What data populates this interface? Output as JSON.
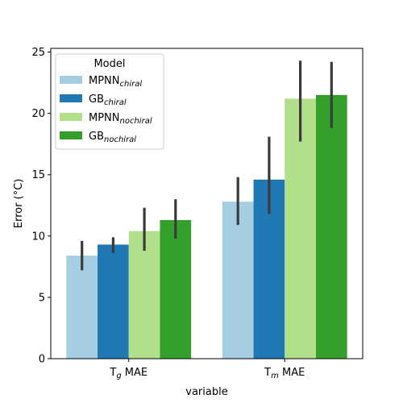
{
  "chart_data": {
    "type": "bar",
    "xlabel": "variable",
    "ylabel": "Error (°C)",
    "ylim": [
      0,
      25.3
    ],
    "yticks": [
      0,
      5,
      10,
      15,
      20,
      25
    ],
    "grid": false,
    "legend_placement": "top-left",
    "legend_title": "Model",
    "categories": [
      {
        "main": "T",
        "sub": "g",
        "rest": " MAE"
      },
      {
        "main": "T",
        "sub": "m",
        "rest": " MAE"
      }
    ],
    "series": [
      {
        "name": {
          "main": "MPNN",
          "sub": "chiral"
        },
        "color": "#a6cee3",
        "values": [
          8.4,
          12.8
        ],
        "error_low": [
          7.2,
          10.9
        ],
        "error_high": [
          9.6,
          14.8
        ]
      },
      {
        "name": {
          "main": "GB",
          "sub": "chiral"
        },
        "color": "#1f78b4",
        "values": [
          9.3,
          14.6
        ],
        "error_low": [
          8.6,
          11.8
        ],
        "error_high": [
          9.9,
          18.1
        ]
      },
      {
        "name": {
          "main": "MPNN",
          "sub": "nochiral"
        },
        "color": "#b2df8a",
        "values": [
          10.4,
          21.2
        ],
        "error_low": [
          8.8,
          17.7
        ],
        "error_high": [
          12.3,
          24.3
        ]
      },
      {
        "name": {
          "main": "GB",
          "sub": "nochiral"
        },
        "color": "#33a02c",
        "values": [
          11.3,
          21.5
        ],
        "error_low": [
          9.8,
          18.8
        ],
        "error_high": [
          13.0,
          24.2
        ]
      }
    ],
    "error_bar_color": "#3b3b3b"
  }
}
